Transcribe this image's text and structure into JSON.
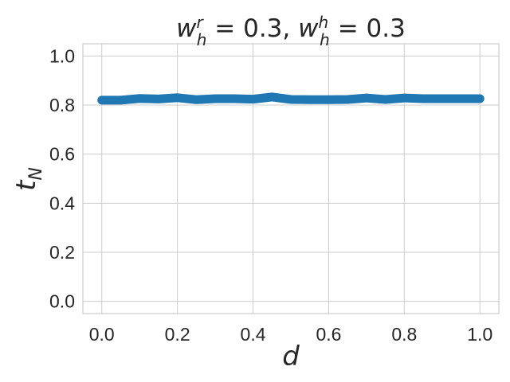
{
  "chart_data": {
    "type": "line",
    "title": {
      "w1": "w",
      "sub1": "h",
      "sup1": "r",
      "eq1": " = 0.3, ",
      "w2": "w",
      "sub2": "h",
      "sup2": "h",
      "eq2": " = 0.3"
    },
    "xlabel": "d",
    "ylabel": {
      "main": "t",
      "sub": "N"
    },
    "xlim": [
      -0.05,
      1.05
    ],
    "ylim": [
      -0.05,
      1.05
    ],
    "x_ticks": [
      "0.0",
      "0.2",
      "0.4",
      "0.6",
      "0.8",
      "1.0"
    ],
    "y_ticks": [
      "0.0",
      "0.2",
      "0.4",
      "0.6",
      "0.8",
      "1.0"
    ],
    "grid": true,
    "series": [
      {
        "color": "#1f77b4",
        "x": [
          0.0,
          0.05,
          0.1,
          0.15,
          0.2,
          0.25,
          0.3,
          0.35,
          0.4,
          0.45,
          0.5,
          0.55,
          0.6,
          0.65,
          0.7,
          0.75,
          0.8,
          0.85,
          0.9,
          0.95,
          1.0
        ],
        "y": [
          0.82,
          0.82,
          0.827,
          0.825,
          0.83,
          0.822,
          0.826,
          0.826,
          0.824,
          0.833,
          0.823,
          0.822,
          0.822,
          0.823,
          0.829,
          0.823,
          0.829,
          0.826,
          0.826,
          0.826,
          0.826
        ]
      }
    ]
  }
}
